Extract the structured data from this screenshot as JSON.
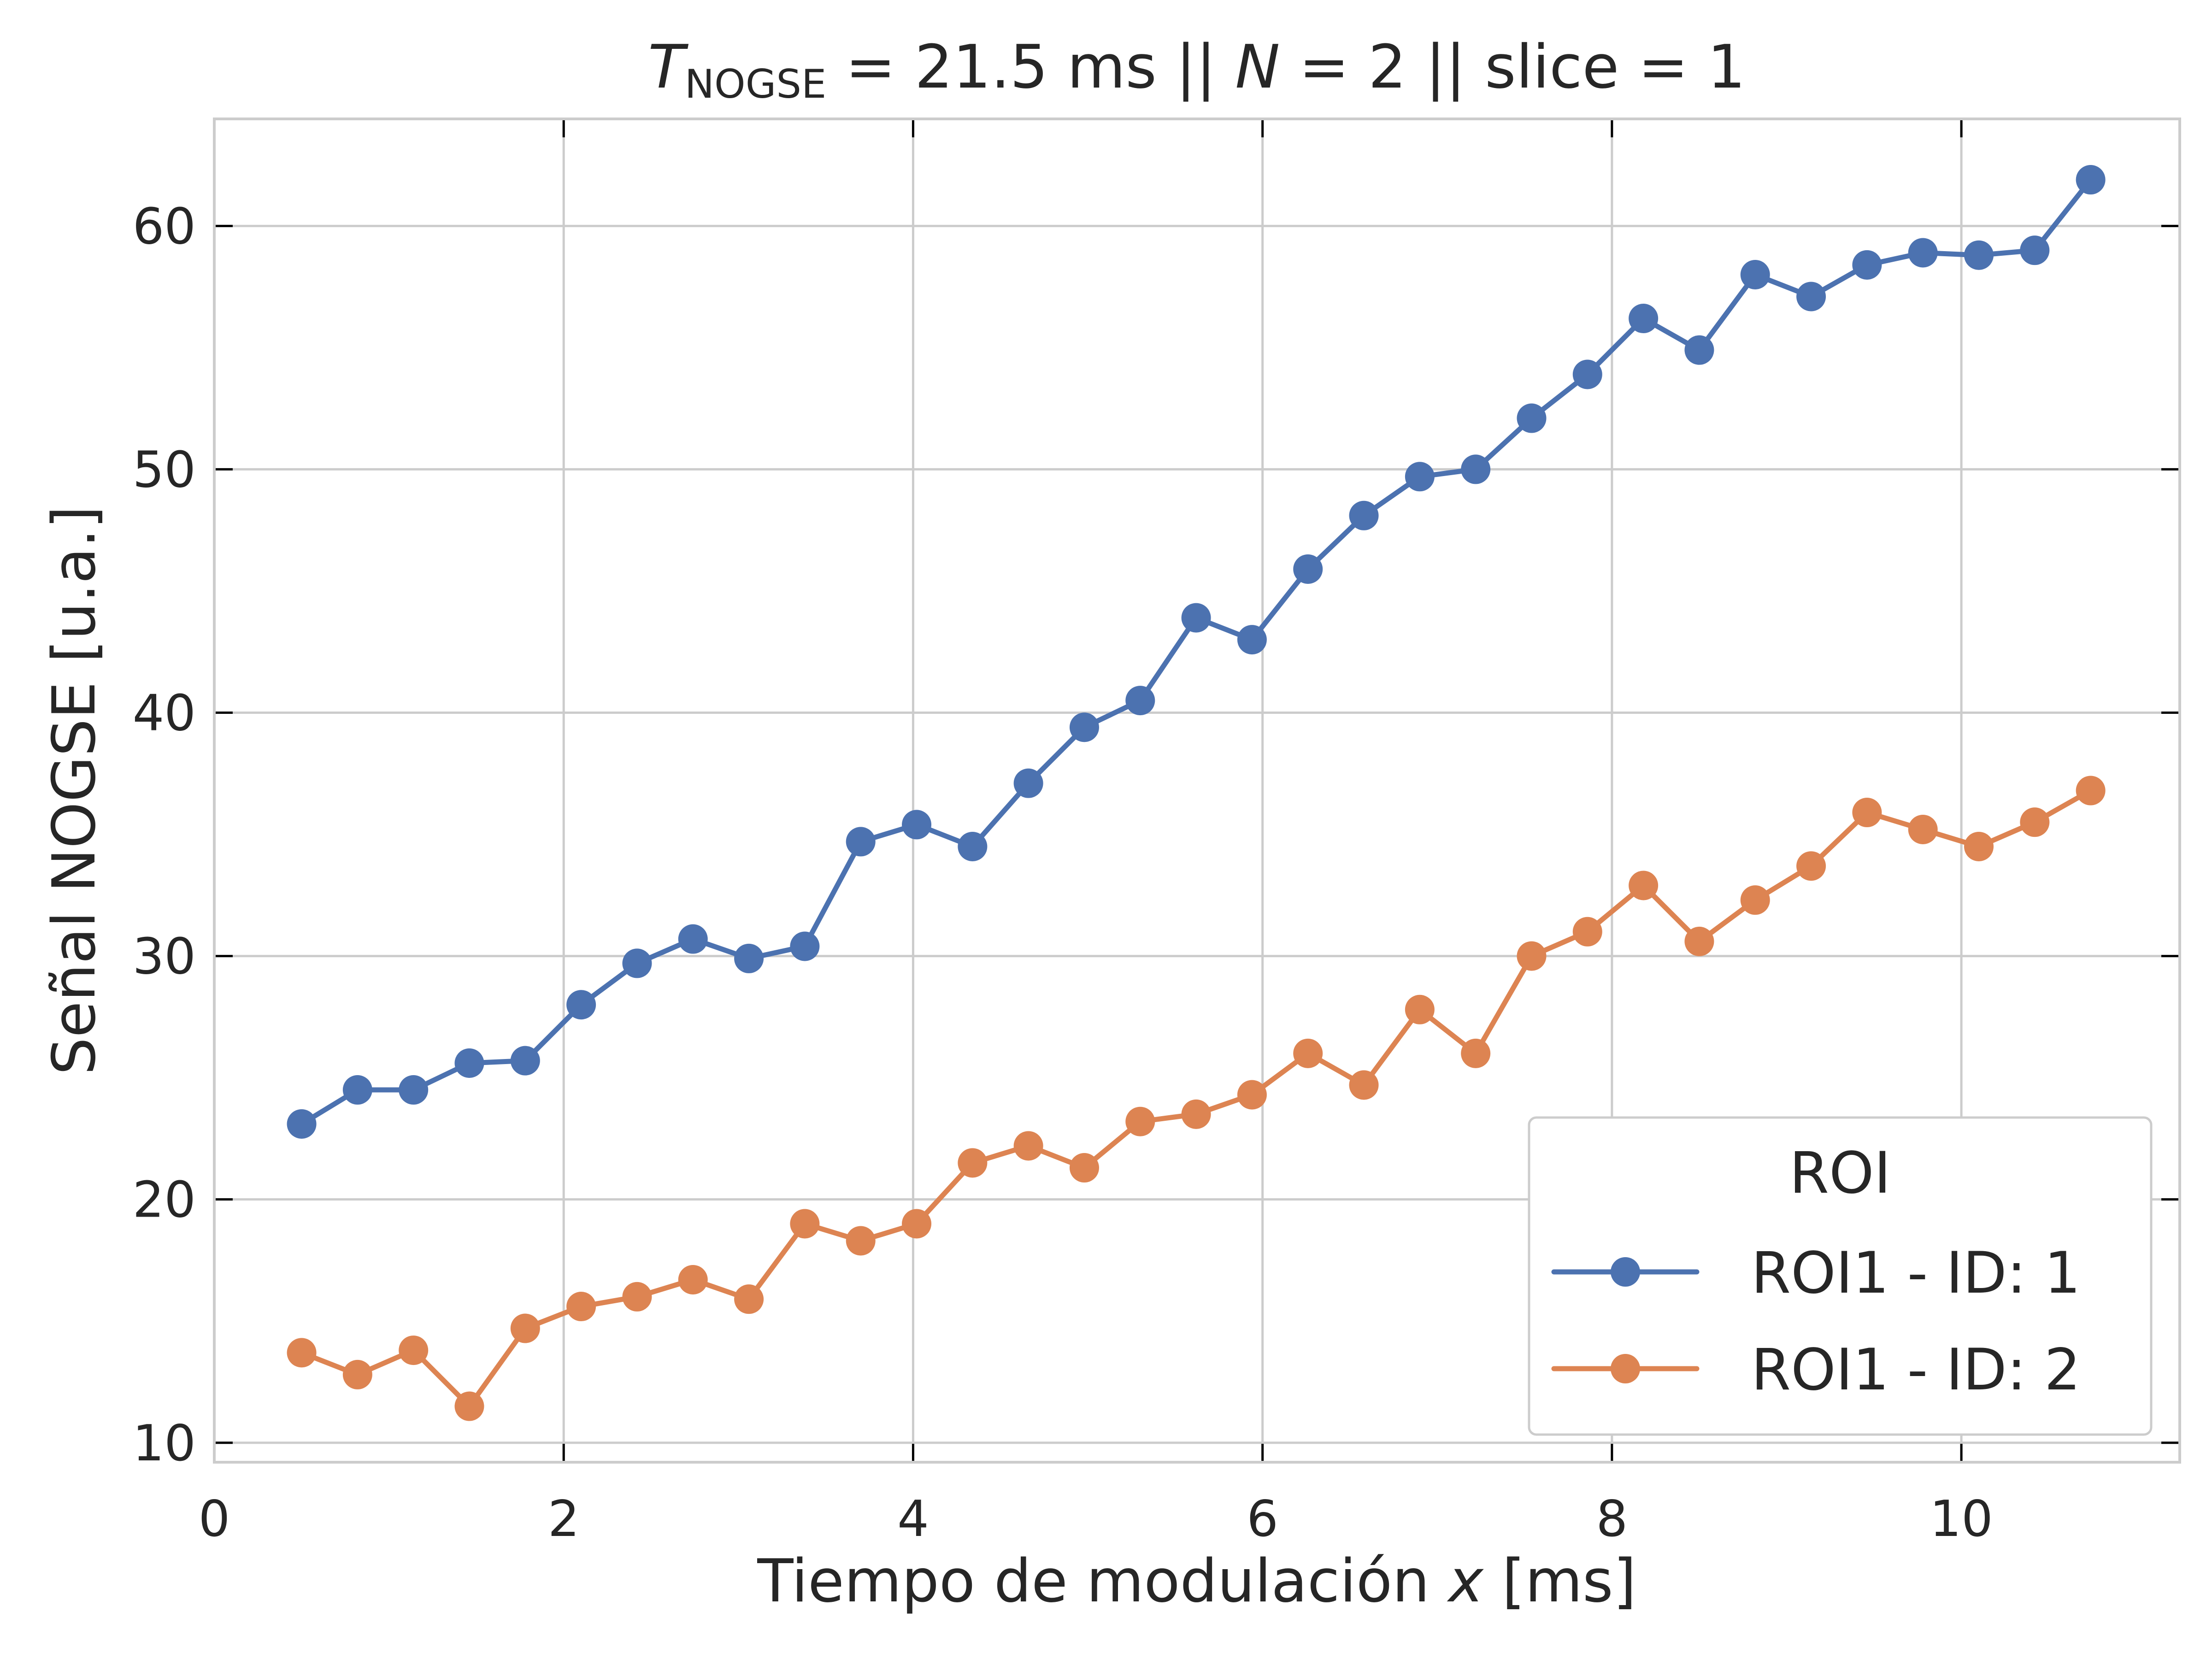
{
  "chart_data": {
    "type": "line",
    "title": {
      "t_symbol": "T",
      "t_subscript": "NOGSE",
      "part1": " = 21.5 ms  ||  ",
      "n_symbol": "N",
      "part2": " = 2 || slice = 1"
    },
    "xlabel": {
      "text": "Tiempo de modulación ",
      "var": "x",
      "unit": " [ms]"
    },
    "ylabel": "Señal NOGSE [u.a.]",
    "xlim": [
      0,
      11.25
    ],
    "ylim": [
      9.2,
      64.4
    ],
    "xticks": [
      0,
      2,
      4,
      6,
      8,
      10
    ],
    "yticks": [
      10,
      20,
      30,
      40,
      50,
      60
    ],
    "grid": true,
    "legend": {
      "title": "ROI",
      "placement": "lower-right"
    },
    "x": [
      0.5,
      0.82,
      1.14,
      1.46,
      1.78,
      2.1,
      2.42,
      2.74,
      3.06,
      3.38,
      3.7,
      4.02,
      4.34,
      4.66,
      4.98,
      5.3,
      5.62,
      5.94,
      6.26,
      6.58,
      6.9,
      7.22,
      7.54,
      7.86,
      8.18,
      8.5,
      8.82,
      9.14,
      9.46,
      9.78,
      10.1,
      10.42,
      10.74
    ],
    "series": [
      {
        "name": "ROI1 - ID: 1",
        "color": "#4c72b0",
        "values": [
          23.1,
          24.5,
          24.5,
          25.6,
          25.7,
          28.0,
          29.7,
          30.7,
          29.9,
          30.4,
          34.7,
          35.4,
          34.5,
          37.1,
          39.4,
          40.5,
          43.9,
          43.0,
          45.9,
          48.1,
          49.7,
          50.0,
          52.1,
          53.9,
          56.2,
          54.9,
          58.0,
          57.1,
          58.4,
          58.9,
          58.8,
          59.0,
          61.9
        ]
      },
      {
        "name": "ROI1 - ID: 2",
        "color": "#dd8452",
        "values": [
          13.7,
          12.8,
          13.8,
          11.5,
          14.7,
          15.6,
          16.0,
          16.7,
          15.9,
          19.0,
          18.3,
          19.0,
          21.5,
          22.2,
          21.3,
          23.2,
          23.5,
          24.3,
          26.0,
          24.7,
          27.8,
          26.0,
          30.0,
          31.0,
          32.9,
          30.6,
          32.3,
          33.7,
          35.9,
          35.2,
          34.5,
          35.5,
          36.8
        ]
      }
    ]
  }
}
